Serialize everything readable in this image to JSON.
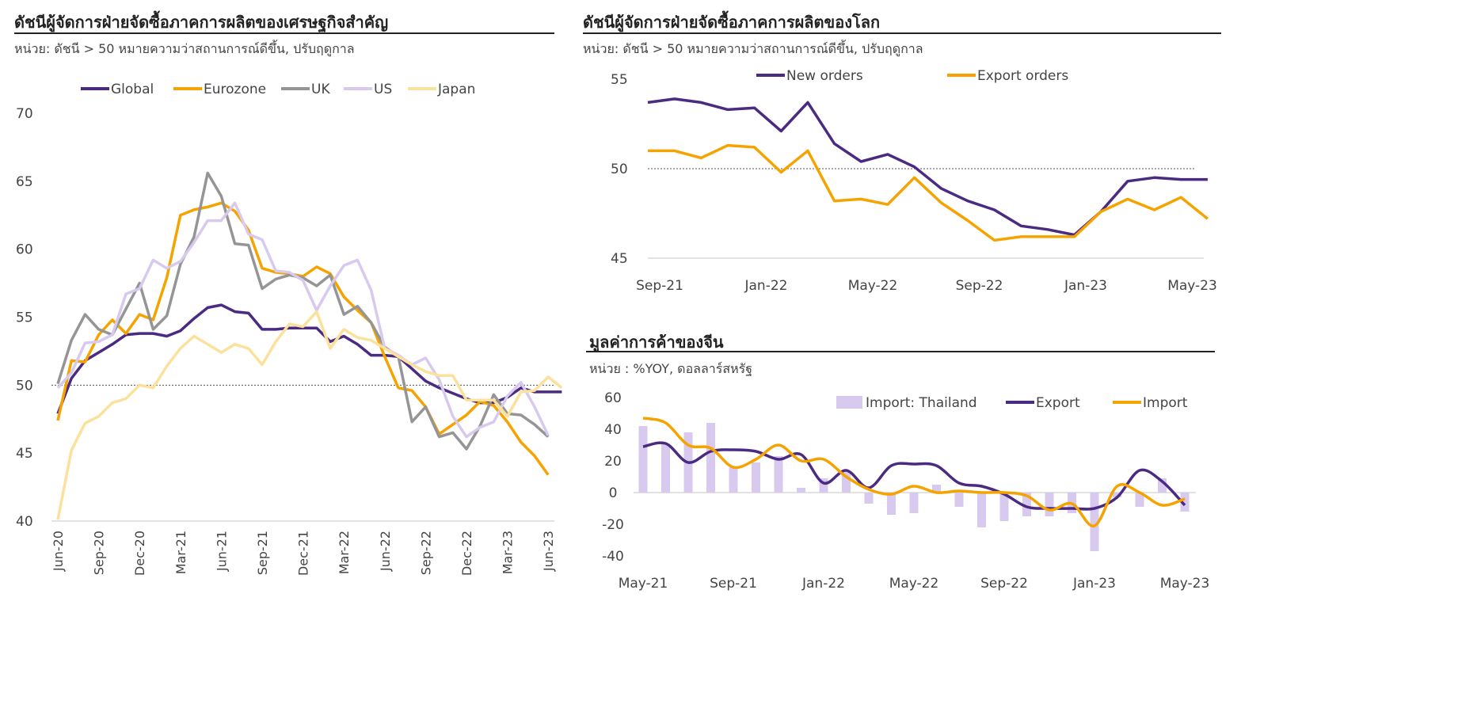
{
  "panels": {
    "left": {
      "title": "ดัชนีผู้จัดการฝ่ายจัดซื้อภาคการผลิตของเศรษฐกิจสำคัญ",
      "unit": "หน่วย: ดัชนี > 50 หมายความว่าสถานการณ์ดีขึ้น, ปรับฤดูกาล"
    },
    "right_top": {
      "title": "ดัชนีผู้จัดการฝ่ายจัดซื้อภาคการผลิตของโลก",
      "unit": "หน่วย: ดัชนี > 50 หมายความว่าสถานการณ์ดีขึ้น, ปรับฤดูกาล"
    },
    "right_bottom": {
      "title": "มูลค่าการค้าของจีน",
      "unit": "หน่วย : %YOY, ดอลลาร์สหรัฐ"
    }
  },
  "chart_data": [
    {
      "type": "line",
      "x_tick_labels": [
        "Jun-20",
        "Sep-20",
        "Dec-20",
        "Mar-21",
        "Jun-21",
        "Sep-21",
        "Dec-21",
        "Mar-22",
        "Jun-22",
        "Sep-22",
        "Dec-22",
        "Mar-23",
        "Jun-23"
      ],
      "ylim": [
        40,
        70
      ],
      "y_ticks": [
        40,
        45,
        50,
        55,
        60,
        65,
        70
      ],
      "reference_line": 50,
      "legend_position": "top",
      "series": [
        {
          "name": "Global",
          "color": "#4b2a82",
          "values": [
            47.9,
            50.5,
            51.8,
            52.4,
            53.0,
            53.7,
            53.8,
            53.8,
            53.6,
            54.0,
            54.9,
            55.7,
            55.9,
            55.4,
            55.3,
            54.1,
            54.1,
            54.2,
            54.2,
            54.2,
            53.2,
            53.6,
            53.0,
            52.2,
            52.2,
            52.1,
            51.2,
            50.3,
            49.8,
            49.4,
            49.0,
            48.7,
            48.7,
            49.1,
            49.8,
            49.5,
            49.5,
            49.5
          ]
        },
        {
          "name": "Eurozone",
          "color": "#f5a300",
          "values": [
            47.4,
            51.8,
            51.7,
            53.7,
            54.8,
            53.8,
            55.2,
            54.8,
            57.9,
            62.5,
            62.9,
            63.1,
            63.4,
            62.8,
            61.4,
            58.6,
            58.3,
            58.2,
            58.0,
            58.7,
            58.2,
            56.5,
            55.5,
            54.6,
            52.1,
            49.8,
            49.6,
            48.4,
            46.4,
            47.1,
            47.8,
            48.8,
            48.5,
            47.3,
            45.8,
            44.8,
            43.4
          ]
        },
        {
          "name": "UK",
          "color": "#959595",
          "values": [
            50.1,
            53.3,
            55.2,
            54.1,
            53.7,
            55.6,
            57.5,
            54.1,
            55.1,
            58.9,
            60.9,
            65.6,
            63.9,
            60.4,
            60.3,
            57.1,
            57.8,
            58.1,
            57.9,
            57.3,
            58.1,
            55.2,
            55.8,
            54.6,
            52.8,
            52.1,
            47.3,
            48.4,
            46.2,
            46.5,
            45.3,
            47.0,
            49.3,
            47.9,
            47.8,
            47.1,
            46.2
          ]
        },
        {
          "name": "US",
          "color": "#d8c9ef",
          "values": [
            49.8,
            50.9,
            53.1,
            53.2,
            53.7,
            56.7,
            57.1,
            59.2,
            58.6,
            59.1,
            60.5,
            62.1,
            62.1,
            63.4,
            61.1,
            60.7,
            58.4,
            58.3,
            57.7,
            55.5,
            57.3,
            58.8,
            59.2,
            57.0,
            52.7,
            52.2,
            51.5,
            52.0,
            50.4,
            47.7,
            46.2,
            46.9,
            47.3,
            49.2,
            50.2,
            48.4,
            46.3
          ]
        },
        {
          "name": "Japan",
          "color": "#fbe19b",
          "values": [
            40.1,
            45.2,
            47.2,
            47.7,
            48.7,
            49.0,
            50.0,
            49.8,
            51.4,
            52.7,
            53.6,
            53.0,
            52.4,
            53.0,
            52.7,
            51.5,
            53.2,
            54.5,
            54.3,
            55.4,
            52.7,
            54.1,
            53.5,
            53.3,
            52.7,
            52.1,
            51.5,
            51.0,
            50.7,
            50.7,
            48.9,
            48.9,
            48.9,
            47.7,
            49.5,
            49.6,
            50.6,
            49.8
          ]
        }
      ]
    },
    {
      "type": "line",
      "x_tick_labels": [
        "Sep-21",
        "Jan-22",
        "May-22",
        "Sep-22",
        "Jan-23",
        "May-23"
      ],
      "ylim": [
        45,
        55
      ],
      "y_ticks": [
        45,
        50,
        55
      ],
      "reference_line": 50,
      "legend_position": "top",
      "series": [
        {
          "name": "New orders",
          "color": "#4b2a82",
          "values": [
            53.7,
            53.9,
            53.7,
            53.3,
            53.4,
            52.1,
            53.7,
            51.4,
            50.4,
            50.8,
            50.1,
            48.9,
            48.2,
            47.7,
            46.8,
            46.6,
            46.3,
            47.6,
            49.3,
            49.5,
            49.4,
            49.4
          ]
        },
        {
          "name": "Export orders",
          "color": "#f5a300",
          "values": [
            51.0,
            51.0,
            50.6,
            51.3,
            51.2,
            49.8,
            51.0,
            48.2,
            48.3,
            48.0,
            49.5,
            48.1,
            47.1,
            46.0,
            46.2,
            46.2,
            46.2,
            47.6,
            48.3,
            47.7,
            48.4,
            47.2
          ]
        }
      ]
    },
    {
      "type": "bar+line",
      "x_tick_labels": [
        "May-21",
        "Sep-21",
        "Jan-22",
        "May-22",
        "Sep-22",
        "Jan-23",
        "May-23"
      ],
      "ylim": [
        -40,
        60
      ],
      "y_ticks": [
        -40,
        -20,
        0,
        20,
        40,
        60
      ],
      "legend_position": "top",
      "bars": {
        "name": "Import: Thailand",
        "color": "#d8c9ef",
        "values": [
          42,
          31,
          38,
          44,
          16,
          19,
          23,
          3,
          9,
          13,
          -7,
          -14,
          -13,
          5,
          -9,
          -22,
          -18,
          -15,
          -15,
          -13,
          -37,
          -3,
          -9,
          9,
          -12
        ]
      },
      "series": [
        {
          "name": "Export",
          "color": "#4b2a82",
          "values": [
            29,
            31,
            19,
            26,
            27,
            26,
            21,
            24,
            6,
            14,
            3,
            17,
            18,
            17,
            6,
            4,
            -1,
            -9,
            -10,
            -10,
            -10,
            -3,
            14,
            7,
            -8
          ]
        },
        {
          "name": "Import",
          "color": "#f5a300",
          "values": [
            47,
            44,
            30,
            28,
            16,
            21,
            30,
            20,
            21,
            10,
            2,
            -1,
            4,
            0,
            1,
            0,
            0,
            -2,
            -11,
            -7,
            -21,
            4,
            0,
            -8,
            -4
          ]
        }
      ]
    }
  ]
}
